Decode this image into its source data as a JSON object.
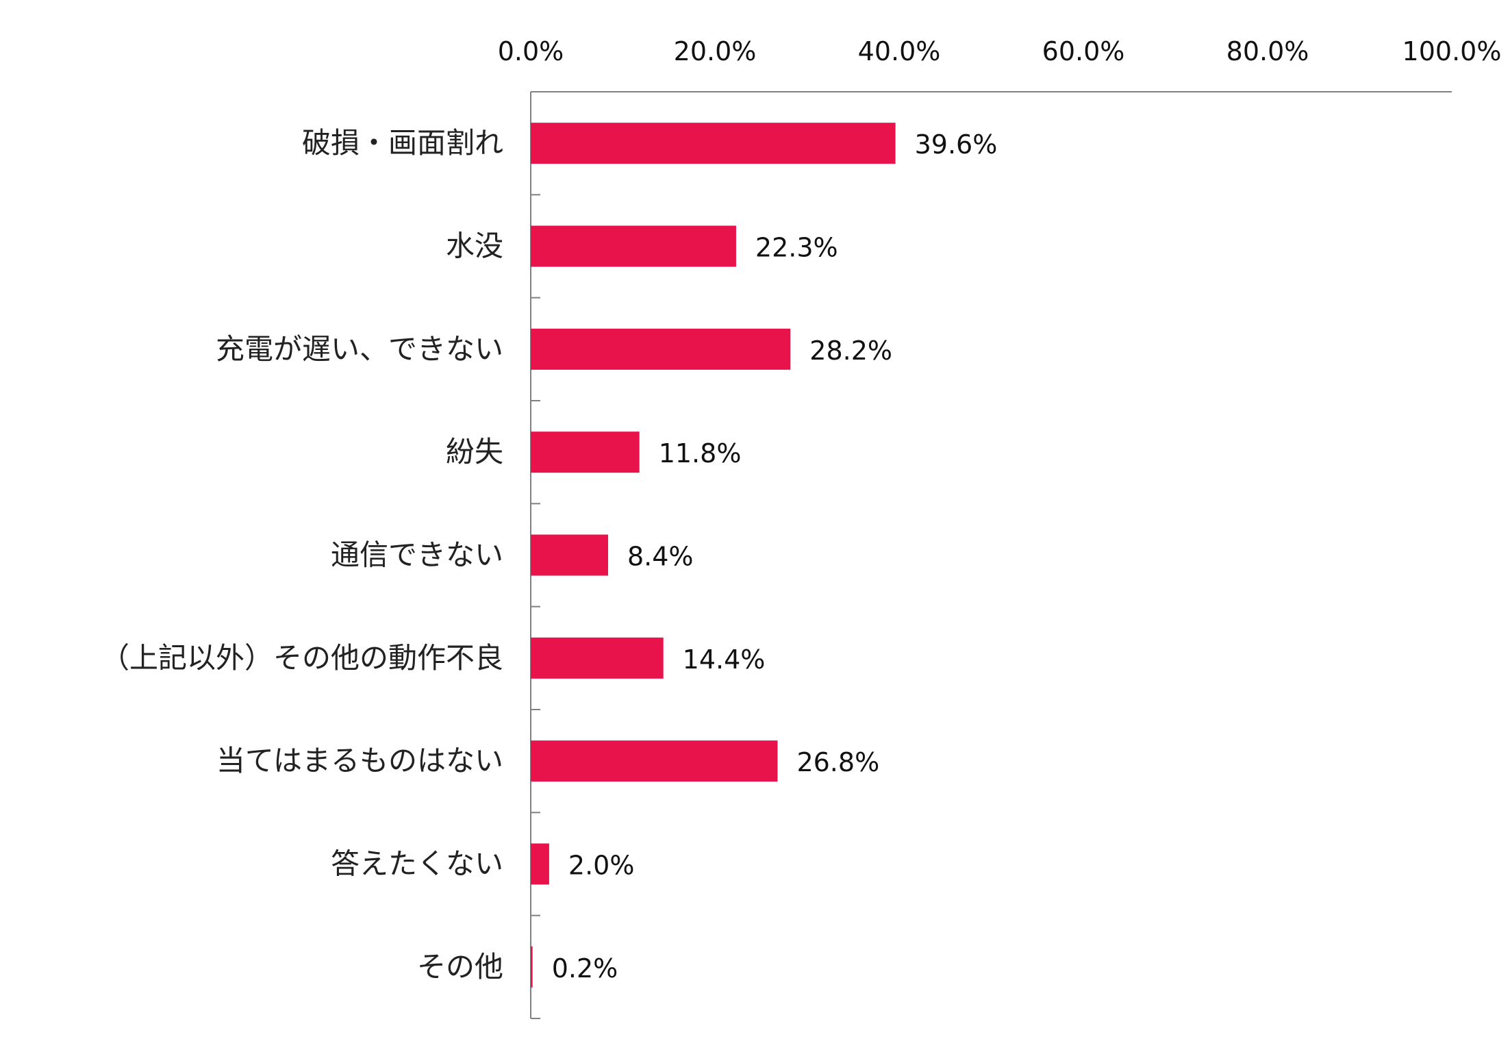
{
  "chart_data": {
    "type": "bar",
    "orientation": "horizontal",
    "categories": [
      "破損・画面割れ",
      "水没",
      "充電が遅い、できない",
      "紛失",
      "通信できない",
      "（上記以外）その他の動作不良",
      "当てはまるものはない",
      "答えたくない",
      "その他"
    ],
    "values": [
      39.6,
      22.3,
      28.2,
      11.8,
      8.4,
      14.4,
      26.8,
      2.0,
      0.2
    ],
    "value_labels": [
      "39.6%",
      "22.3%",
      "28.2%",
      "11.8%",
      "8.4%",
      "14.4%",
      "26.8%",
      "2.0%",
      "0.2%"
    ],
    "x_ticks": [
      0,
      20,
      40,
      60,
      80,
      100
    ],
    "x_tick_labels": [
      "0.0%",
      "20.0%",
      "40.0%",
      "60.0%",
      "80.0%",
      "100.0%"
    ],
    "xlim": [
      0,
      100
    ],
    "x_axis_position": "top",
    "grid": false,
    "legend": "none",
    "bar_color": "#E8134A",
    "axis_color": "#808080"
  }
}
